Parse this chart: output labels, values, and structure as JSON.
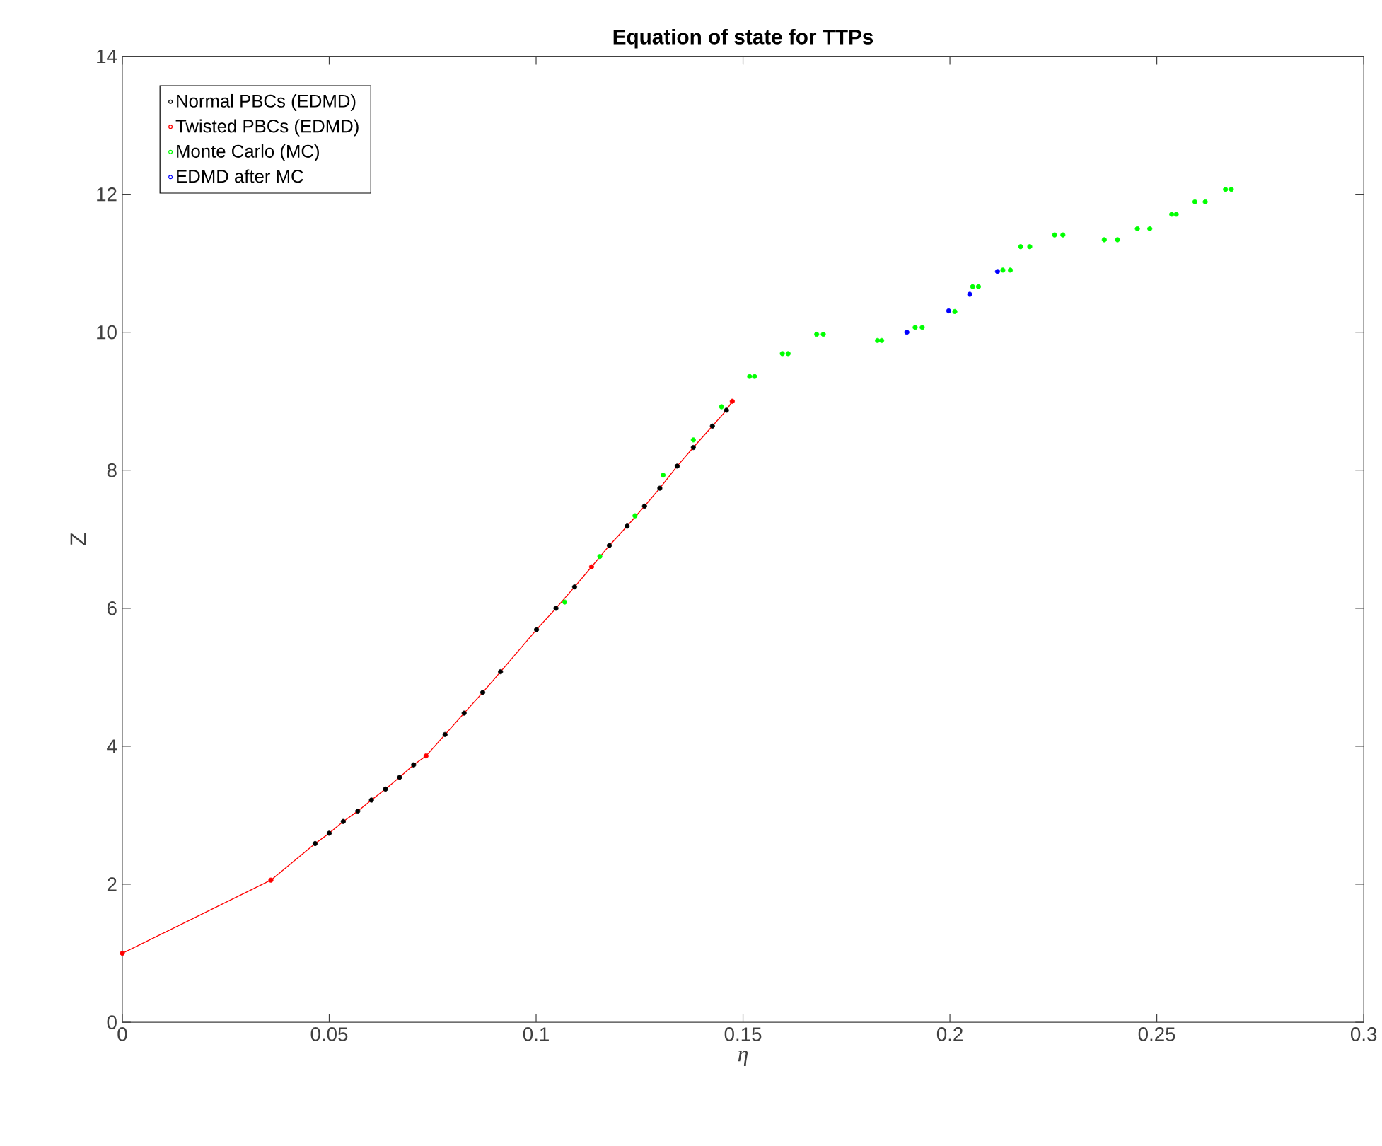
{
  "chart_data": {
    "type": "scatter",
    "title": "Equation of state for TTPs",
    "xlabel": "η",
    "ylabel": "Z",
    "xlim": [
      0,
      0.3
    ],
    "ylim": [
      0,
      14
    ],
    "xticks": [
      0,
      0.05,
      0.1,
      0.15,
      0.2,
      0.25,
      0.3
    ],
    "yticks": [
      0,
      2,
      4,
      6,
      8,
      10,
      12,
      14
    ],
    "grid": false,
    "legend": "top left",
    "marker": "circle",
    "series": [
      {
        "name": "Normal PBCs (EDMD)",
        "color": "#000000",
        "x": [
          0.0466,
          0.05,
          0.0534,
          0.0569,
          0.0602,
          0.0636,
          0.067,
          0.0704,
          0.078,
          0.0826,
          0.0871,
          0.0914,
          0.1001,
          0.1048,
          0.1093,
          0.1177,
          0.122,
          0.1262,
          0.1299,
          0.1341,
          0.138,
          0.1426,
          0.146
        ],
        "values": [
          2.59,
          2.74,
          2.91,
          3.06,
          3.22,
          3.38,
          3.55,
          3.73,
          4.17,
          4.48,
          4.78,
          5.08,
          5.69,
          6.0,
          6.31,
          6.91,
          7.19,
          7.48,
          7.74,
          8.06,
          8.33,
          8.64,
          8.87
        ]
      },
      {
        "name": "Twisted PBCs (EDMD)",
        "color": "#ff0000",
        "x": [
          0,
          0.0359,
          0.0734,
          0.1134,
          0.1474
        ],
        "values": [
          1.0,
          2.06,
          3.86,
          6.6,
          9.0
        ]
      },
      {
        "type": "line",
        "color": "#ff0000",
        "marker": "none",
        "x": [
          0,
          0.0359,
          0.0466,
          0.05,
          0.0534,
          0.0569,
          0.0602,
          0.0636,
          0.067,
          0.0704,
          0.0734,
          0.078,
          0.0826,
          0.0871,
          0.0914,
          0.1001,
          0.1048,
          0.1093,
          0.1134,
          0.1177,
          0.122,
          0.1262,
          0.1299,
          0.1341,
          0.138,
          0.1426,
          0.146,
          0.1474
        ],
        "values": [
          1.0,
          2.06,
          2.59,
          2.74,
          2.91,
          3.06,
          3.22,
          3.38,
          3.55,
          3.73,
          3.86,
          4.17,
          4.48,
          4.78,
          5.08,
          5.69,
          6.0,
          6.31,
          6.6,
          6.91,
          7.19,
          7.48,
          7.74,
          8.06,
          8.33,
          8.64,
          8.87,
          9.0
        ]
      },
      {
        "name": "Monte Carlo (MC)",
        "color": "#00ff00",
        "x": [
          0.1069,
          0.1154,
          0.1239,
          0.1307,
          0.138,
          0.1448,
          0.1516,
          0.1528,
          0.1595,
          0.1609,
          0.1678,
          0.1694,
          0.1825,
          0.1835,
          0.1916,
          0.1933,
          0.2012,
          0.2055,
          0.2069,
          0.2128,
          0.2146,
          0.2171,
          0.2193,
          0.2253,
          0.2273,
          0.2373,
          0.2405,
          0.2453,
          0.2483,
          0.2536,
          0.2547,
          0.2592,
          0.2617,
          0.2666,
          0.268
        ],
        "values": [
          6.09,
          6.75,
          7.34,
          7.93,
          8.44,
          8.92,
          9.36,
          9.36,
          9.69,
          9.69,
          9.97,
          9.97,
          9.88,
          9.88,
          10.07,
          10.07,
          10.3,
          10.66,
          10.66,
          10.9,
          10.9,
          11.24,
          11.24,
          11.41,
          11.41,
          11.34,
          11.34,
          11.5,
          11.5,
          11.71,
          11.71,
          11.89,
          11.89,
          12.07,
          12.07
        ]
      },
      {
        "name": "EDMD after MC",
        "color": "#0000ff",
        "x": [
          0.1896,
          0.1997,
          0.2048,
          0.2115
        ],
        "values": [
          10.0,
          10.31,
          10.55,
          10.88
        ]
      }
    ]
  }
}
